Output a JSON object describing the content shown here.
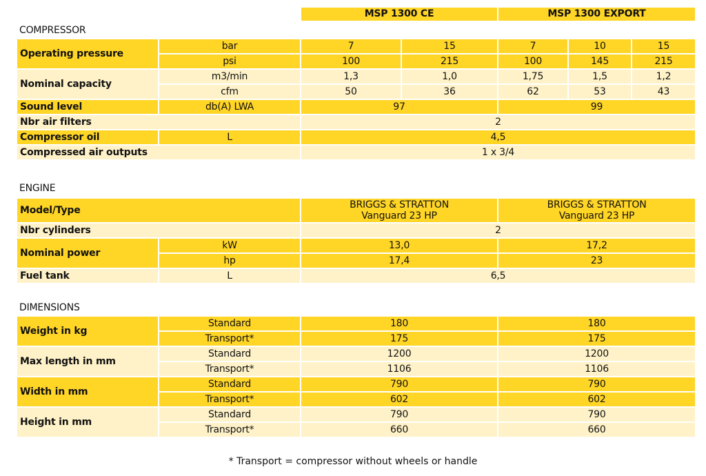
{
  "header": {
    "models": [
      "MSP 1300 CE",
      "MSP 1300 EXPORT"
    ]
  },
  "sections": [
    {
      "title": "COMPRESSOR",
      "rows": [
        {
          "label": "Operating pressure",
          "units": [
            "bar",
            "psi"
          ],
          "values": [
            [
              "7",
              "15",
              "7",
              "10",
              "15"
            ],
            [
              "100",
              "215",
              "100",
              "145",
              "215"
            ]
          ]
        },
        {
          "label": "Nominal capacity",
          "units": [
            "m3/min",
            "cfm"
          ],
          "values": [
            [
              "1,3",
              "1,0",
              "1,75",
              "1,5",
              "1,2"
            ],
            [
              "50",
              "36",
              "62",
              "53",
              "43"
            ]
          ]
        },
        {
          "label": "Sound level",
          "units": [
            "db(A) LWA"
          ],
          "values": [
            [
              "97",
              "99"
            ]
          ]
        },
        {
          "label": "Nbr air filters",
          "units": null,
          "values": [
            [
              "2"
            ]
          ]
        },
        {
          "label": "Compressor oil",
          "units": [
            "L"
          ],
          "values": [
            [
              "4,5"
            ]
          ]
        },
        {
          "label": "Compressed air outputs",
          "units": null,
          "values": [
            [
              "1 x 3/4"
            ]
          ]
        }
      ]
    },
    {
      "title": "ENGINE",
      "rows": [
        {
          "label": "Model/Type",
          "units": null,
          "values": [
            [
              "BRIGGS & STRATTON\nVanguard 23 HP",
              "BRIGGS & STRATTON\nVanguard 23 HP"
            ]
          ]
        },
        {
          "label": "Nbr cylinders",
          "units": null,
          "values": [
            [
              "2"
            ]
          ]
        },
        {
          "label": "Nominal power",
          "units": [
            "kW",
            "hp"
          ],
          "values": [
            [
              "13,0",
              "17,2"
            ],
            [
              "17,4",
              "23"
            ]
          ]
        },
        {
          "label": "Fuel tank",
          "units": [
            "L"
          ],
          "values": [
            [
              "6,5"
            ]
          ]
        }
      ]
    },
    {
      "title": "DIMENSIONS",
      "rows": [
        {
          "label": "Weight in kg",
          "units": [
            "Standard",
            "Transport*"
          ],
          "values": [
            [
              "180",
              "180"
            ],
            [
              "175",
              "175"
            ]
          ]
        },
        {
          "label": "Max length in mm",
          "units": [
            "Standard",
            "Transport*"
          ],
          "values": [
            [
              "1200",
              "1200"
            ],
            [
              "1106",
              "1106"
            ]
          ]
        },
        {
          "label": "Width in mm",
          "units": [
            "Standard",
            "Transport*"
          ],
          "values": [
            [
              "790",
              "790"
            ],
            [
              "602",
              "602"
            ]
          ]
        },
        {
          "label": "Height in mm",
          "units": [
            "Standard",
            "Transport*"
          ],
          "values": [
            [
              "790",
              "790"
            ],
            [
              "660",
              "660"
            ]
          ]
        }
      ]
    }
  ],
  "footnote": "* Transport = compressor without wheels or handle",
  "colors": {
    "dark_row": "#FFD526",
    "light_row": "#FFF2C8"
  }
}
